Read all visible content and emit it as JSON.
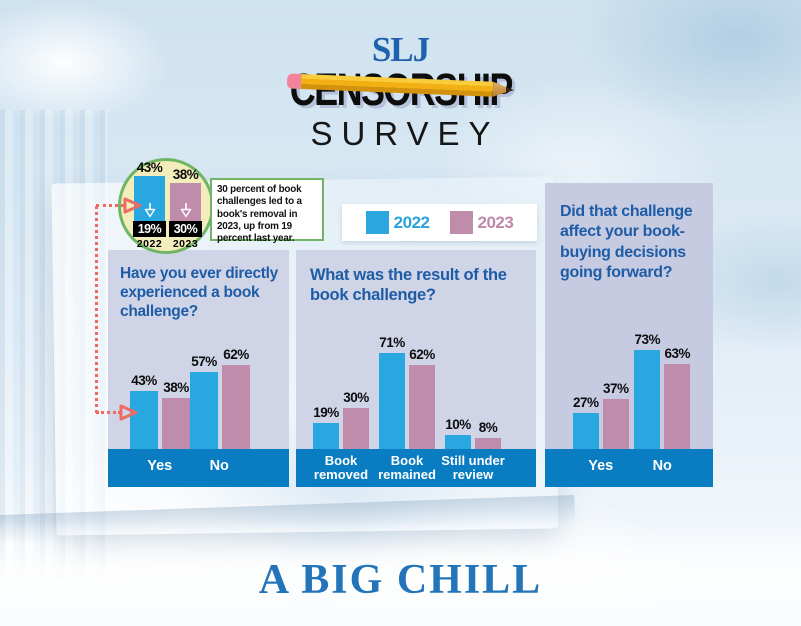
{
  "header": {
    "logo": "SLJ",
    "crossed_word": "CENSORSHIP",
    "subtitle": "SURVEY"
  },
  "callout": {
    "note": "30 percent of book challenges led to a book's removal in 2023, up from 19 percent last year.",
    "mini_chart": {
      "type": "bar",
      "categories": [
        "2022",
        "2023"
      ],
      "values": [
        43,
        38
      ],
      "top_labels": [
        "43%",
        "38%"
      ],
      "inner_labels": [
        "19%",
        "30%"
      ],
      "description": "Book challenges experienced, with removal rate shown inside each bar"
    }
  },
  "legend": {
    "items": [
      {
        "label": "2022",
        "color": "#2BA6DF"
      },
      {
        "label": "2023",
        "color": "#C08CAC"
      }
    ]
  },
  "chart_data": [
    {
      "type": "bar",
      "title": "Have you ever directly experienced a book challenge?",
      "categories": [
        "Yes",
        "No"
      ],
      "series": [
        {
          "name": "2022",
          "color": "#29A7E0",
          "values": [
            43,
            57
          ]
        },
        {
          "name": "2023",
          "color": "#C08CAC",
          "values": [
            38,
            62
          ]
        }
      ],
      "unit": "%",
      "ylim": [
        0,
        75
      ],
      "grid": false,
      "legend_position": "top-shared"
    },
    {
      "type": "bar",
      "title": "What was the result of the book challenge?",
      "categories": [
        "Book removed",
        "Book remained",
        "Still under review"
      ],
      "series": [
        {
          "name": "2022",
          "color": "#29A7E0",
          "values": [
            19,
            71,
            10
          ]
        },
        {
          "name": "2023",
          "color": "#C08CAC",
          "values": [
            30,
            62,
            8
          ]
        }
      ],
      "unit": "%",
      "ylim": [
        0,
        75
      ],
      "grid": false,
      "legend_position": "top-shared"
    },
    {
      "type": "bar",
      "title": "Did that challenge affect your book-buying decisions going forward?",
      "categories": [
        "Yes",
        "No"
      ],
      "series": [
        {
          "name": "2022",
          "color": "#29A7E0",
          "values": [
            27,
            73
          ]
        },
        {
          "name": "2023",
          "color": "#C08CAC",
          "values": [
            37,
            63
          ]
        }
      ],
      "unit": "%",
      "ylim": [
        0,
        75
      ],
      "grid": false,
      "legend_position": "top-shared"
    }
  ],
  "footer_title": "A BIG CHILL",
  "colors": {
    "bar_2022": "#29A7E0",
    "bar_2023": "#C08CAC",
    "band_blue": "#0A7DC2",
    "panel_bg": "#CFD4E7",
    "title_blue": "#1E5CA6",
    "callout_fill": "#F2EDBB",
    "callout_border": "#6FB565",
    "connector_coral": "#EE6A62",
    "logo_blue": "#2061AE",
    "big_title_blue": "#2474B9",
    "pencil_yellow": "#F2B014"
  }
}
